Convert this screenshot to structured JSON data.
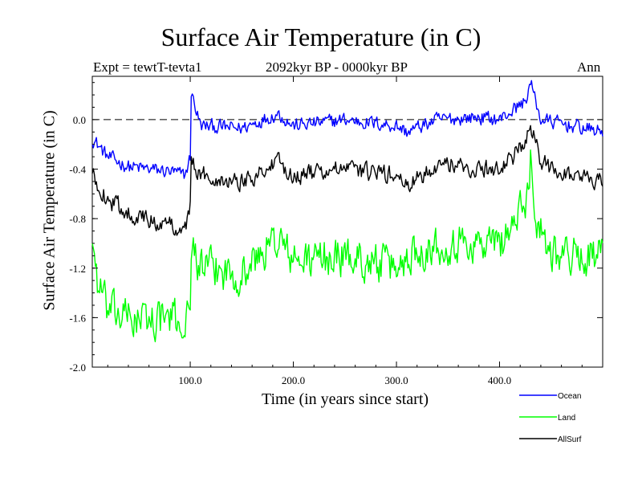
{
  "chart_data": {
    "type": "line",
    "title": "Surface Air Temperature (in C)",
    "subtitle": "2092kyr BP - 0000kyr BP",
    "experiment": "Expt = tewtT-tevta1",
    "season": "Ann",
    "xlabel": "Time (in years since start)",
    "ylabel": "Surface Air Temperature (in C)",
    "xlim": [
      5,
      500
    ],
    "ylim": [
      -2.0,
      0.35
    ],
    "xticks": [
      100,
      200,
      300,
      400
    ],
    "xtick_labels": [
      "100.0",
      "200.0",
      "300.0",
      "400.0"
    ],
    "yticks": [
      -2.0,
      -1.6,
      -1.2,
      -0.8,
      -0.4,
      0.0
    ],
    "ytick_labels": [
      "-2.0",
      "-1.6",
      "-1.2",
      "-0.8",
      "-0.4",
      "0.0"
    ],
    "reference_line": 0.0,
    "legend_position": "bottom-right, below plot",
    "series": [
      {
        "name": "Ocean",
        "color": "#0000ff",
        "noise": 0.08,
        "x": [
          5,
          20,
          40,
          60,
          80,
          95,
          100,
          101,
          110,
          150,
          185,
          200,
          250,
          300,
          310,
          340,
          380,
          400,
          425,
          430,
          440,
          470,
          500
        ],
        "values": [
          -0.15,
          -0.3,
          -0.38,
          -0.4,
          -0.42,
          -0.45,
          -0.3,
          0.22,
          -0.05,
          -0.07,
          0.05,
          -0.05,
          0.0,
          -0.05,
          -0.1,
          0.0,
          0.02,
          0.0,
          0.15,
          0.3,
          0.0,
          -0.05,
          -0.1
        ]
      },
      {
        "name": "Land",
        "color": "#00ff00",
        "noise": 0.22,
        "x": [
          5,
          10,
          20,
          40,
          60,
          80,
          95,
          100,
          101,
          110,
          150,
          185,
          200,
          250,
          300,
          320,
          350,
          400,
          425,
          430,
          435,
          450,
          470,
          500
        ],
        "values": [
          -0.95,
          -1.3,
          -1.55,
          -1.6,
          -1.62,
          -1.6,
          -1.65,
          -1.55,
          -1.0,
          -1.2,
          -1.25,
          -0.95,
          -1.15,
          -1.1,
          -1.2,
          -1.05,
          -1.0,
          -1.0,
          -0.7,
          -0.3,
          -0.8,
          -1.05,
          -1.1,
          -1.1
        ]
      },
      {
        "name": "AllSurf",
        "color": "#000000",
        "noise": 0.1,
        "x": [
          5,
          20,
          40,
          60,
          80,
          95,
          100,
          101,
          110,
          150,
          185,
          200,
          250,
          300,
          310,
          340,
          380,
          400,
          425,
          430,
          440,
          470,
          500
        ],
        "values": [
          -0.45,
          -0.65,
          -0.75,
          -0.82,
          -0.85,
          -0.88,
          -0.7,
          -0.35,
          -0.45,
          -0.5,
          -0.35,
          -0.45,
          -0.4,
          -0.45,
          -0.55,
          -0.35,
          -0.4,
          -0.4,
          -0.2,
          -0.05,
          -0.35,
          -0.45,
          -0.5
        ]
      }
    ]
  },
  "legend": {
    "items": [
      {
        "label": "Ocean",
        "color": "#0000ff"
      },
      {
        "label": "Land",
        "color": "#00ff00"
      },
      {
        "label": "AllSurf",
        "color": "#000000"
      }
    ]
  }
}
